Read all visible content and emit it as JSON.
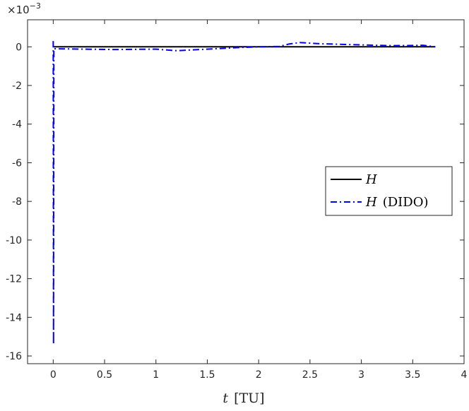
{
  "chart_data": {
    "type": "line",
    "xlabel_var": "t",
    "xlabel_unit": "[TU]",
    "ylabel": "",
    "y_multiplier": "×10",
    "y_multiplier_exp": "−3",
    "xlim": [
      -0.25,
      4
    ],
    "ylim": [
      -16.4,
      1.4
    ],
    "x_ticks": [
      0,
      0.5,
      1,
      1.5,
      2,
      2.5,
      3,
      3.5,
      4
    ],
    "x_tick_labels": [
      "0",
      "0.5",
      "1",
      "1.5",
      "2",
      "2.5",
      "3",
      "3.5",
      "4"
    ],
    "y_ticks": [
      0,
      -2,
      -4,
      -6,
      -8,
      -10,
      -12,
      -14,
      -16
    ],
    "y_tick_labels": [
      "0",
      "-2",
      "-4",
      "-6",
      "-8",
      "-10",
      "-12",
      "-14",
      "-16"
    ],
    "grid": false,
    "legend_position": "center-right",
    "series": [
      {
        "name_var": "H",
        "name_suffix": "",
        "color": "#000000",
        "style": "solid",
        "x": [
          0,
          0.5,
          1,
          1.5,
          2,
          2.5,
          3,
          3.5,
          3.72
        ],
        "y": [
          0,
          0,
          0,
          0,
          0,
          0,
          0,
          0,
          0
        ]
      },
      {
        "name_var": "H",
        "name_suffix": "(DIDO)",
        "color": "#0000ff",
        "style": "dashdot",
        "x": [
          0,
          0.003,
          0.006,
          0.02,
          0.3,
          0.6,
          1.0,
          1.2,
          1.5,
          1.8,
          2.0,
          2.2,
          2.3,
          2.4,
          2.6,
          3.0,
          3.3,
          3.5,
          3.6,
          3.72
        ],
        "y": [
          0.3,
          -15.4,
          -0.1,
          -0.1,
          -0.12,
          -0.14,
          -0.12,
          -0.2,
          -0.12,
          -0.04,
          0,
          0.02,
          0.15,
          0.22,
          0.16,
          0.1,
          0.06,
          0.07,
          0.08,
          0
        ]
      }
    ]
  }
}
